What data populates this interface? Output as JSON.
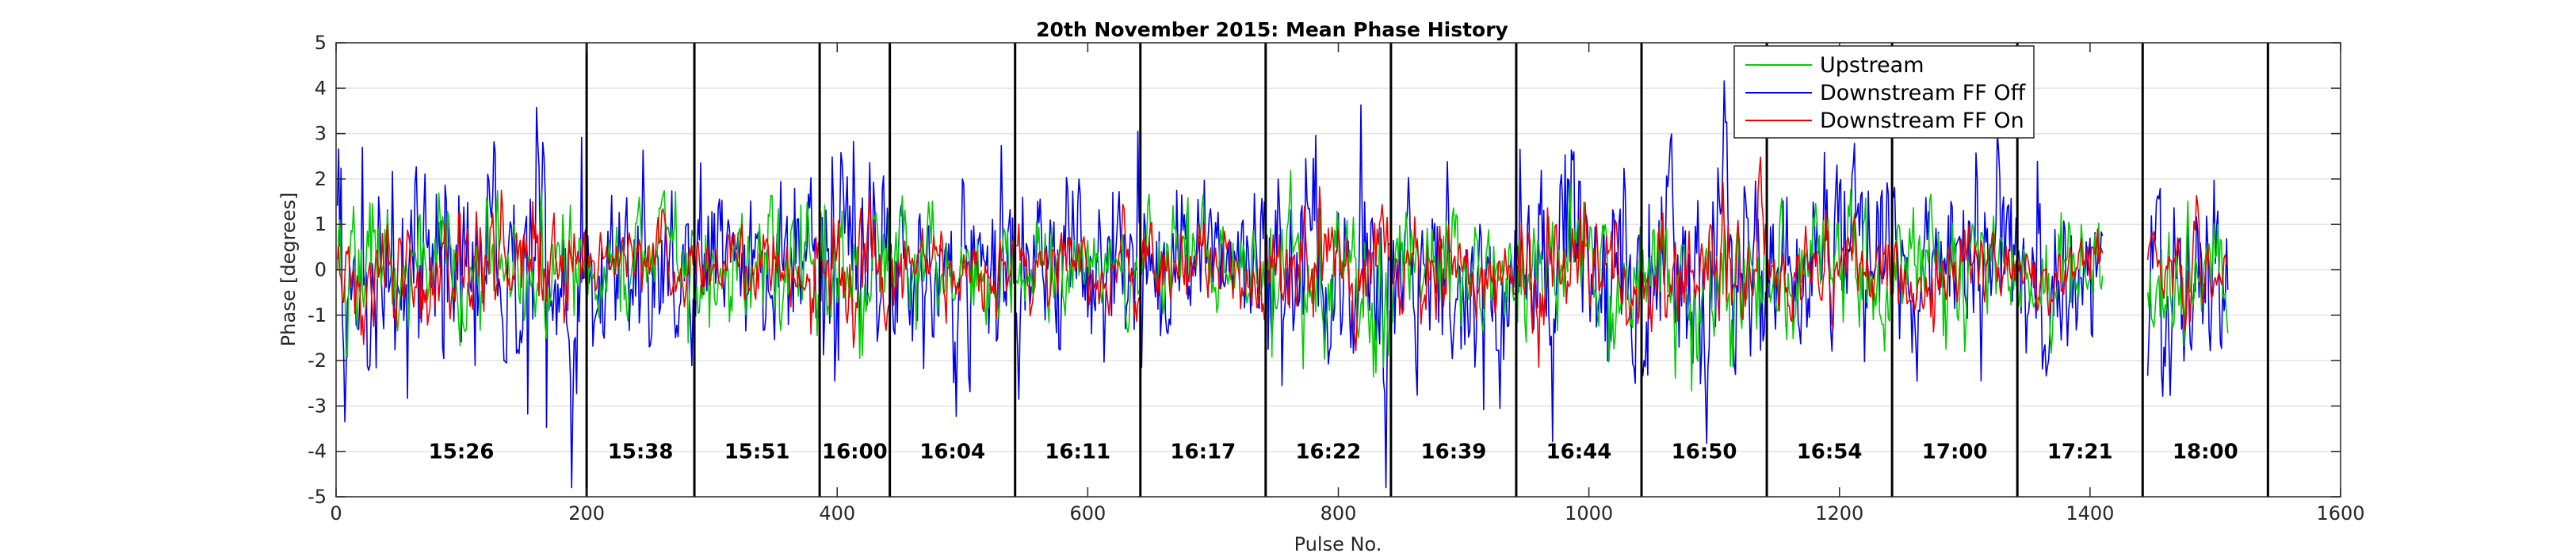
{
  "chart_data": {
    "type": "line",
    "title": "20th November 2015: Mean Phase History",
    "xlabel": "Pulse No.",
    "ylabel": "Phase [degrees]",
    "xlim": [
      0,
      1600
    ],
    "ylim": [
      -5,
      5
    ],
    "xticks": [
      0,
      200,
      400,
      600,
      800,
      1000,
      1200,
      1400,
      1600
    ],
    "yticks": [
      -5,
      -4,
      -3,
      -2,
      -1,
      0,
      1,
      2,
      3,
      4,
      5
    ],
    "xtick_labels": [
      "0",
      "200",
      "400",
      "600",
      "800",
      "1000",
      "1200",
      "1400",
      "1600"
    ],
    "ytick_labels": [
      "-5",
      "-4",
      "-3",
      "-2",
      "-1",
      "0",
      "1",
      "2",
      "3",
      "4",
      "5"
    ],
    "grid": "horizontal",
    "legend_position": "top-right",
    "series": [
      {
        "name": "Upstream",
        "color": "#00cc00"
      },
      {
        "name": "Downstream FF Off",
        "color": "#0000ee"
      },
      {
        "name": "Downstream FF On",
        "color": "#ee0000"
      }
    ],
    "dividers": [
      200,
      286,
      386,
      442,
      542,
      642,
      742,
      842,
      942,
      1042,
      1142,
      1242,
      1342,
      1442,
      1542
    ],
    "segments": [
      {
        "label": "15:26",
        "x": 100,
        "start": 0,
        "end": 200
      },
      {
        "label": "15:38",
        "x": 243,
        "start": 200,
        "end": 286
      },
      {
        "label": "15:51",
        "x": 336,
        "start": 286,
        "end": 386
      },
      {
        "label": "16:00",
        "x": 414,
        "start": 386,
        "end": 442
      },
      {
        "label": "16:04",
        "x": 492,
        "start": 442,
        "end": 542
      },
      {
        "label": "16:11",
        "x": 592,
        "start": 542,
        "end": 642
      },
      {
        "label": "16:17",
        "x": 692,
        "start": 642,
        "end": 742
      },
      {
        "label": "16:22",
        "x": 792,
        "start": 742,
        "end": 842
      },
      {
        "label": "16:39",
        "x": 892,
        "start": 842,
        "end": 942
      },
      {
        "label": "16:44",
        "x": 992,
        "start": 942,
        "end": 1042
      },
      {
        "label": "16:50",
        "x": 1092,
        "start": 1042,
        "end": 1142
      },
      {
        "label": "16:54",
        "x": 1192,
        "start": 1142,
        "end": 1242
      },
      {
        "label": "17:00",
        "x": 1292,
        "start": 1242,
        "end": 1342
      },
      {
        "label": "17:21",
        "x": 1392,
        "start": 1342,
        "end": 1442
      },
      {
        "label": "18:00",
        "x": 1492,
        "start": 1442,
        "end": 1542
      }
    ]
  }
}
